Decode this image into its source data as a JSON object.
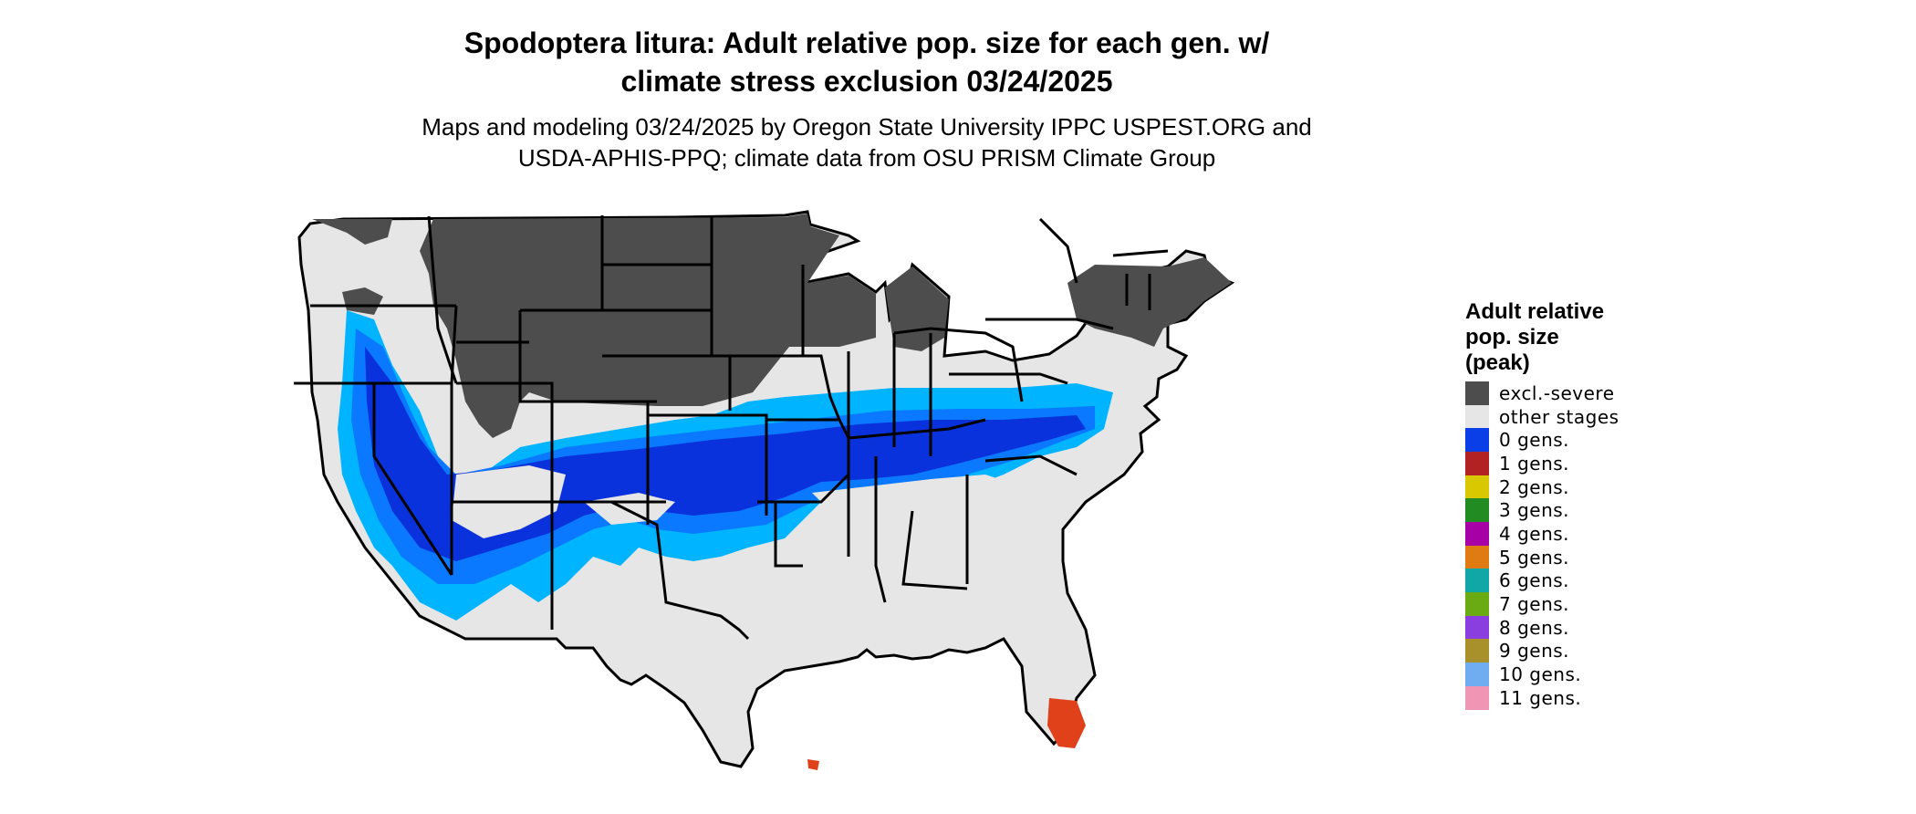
{
  "title_line1": "Spodoptera litura: Adult relative pop. size for each gen. w/",
  "title_line2": "climate stress exclusion 03/24/2025",
  "subtitle_line1": "Maps and modeling 03/24/2025 by Oregon State University IPPC USPEST.ORG and",
  "subtitle_line2": "USDA-APHIS-PPQ; climate data from OSU PRISM Climate Group",
  "legend": {
    "title_line1": "Adult relative",
    "title_line2": "pop. size",
    "title_line3": "(peak)",
    "items": [
      {
        "label": "excl.-severe",
        "color": "#4d4d4d"
      },
      {
        "label": "other stages",
        "color": "#e6e6e6"
      },
      {
        "label": "0 gens.",
        "color": "#0a3ee6"
      },
      {
        "label": "1 gens.",
        "color": "#b22222"
      },
      {
        "label": "2 gens.",
        "color": "#d9c800"
      },
      {
        "label": "3 gens.",
        "color": "#228b22"
      },
      {
        "label": "4 gens.",
        "color": "#a600a6"
      },
      {
        "label": "5 gens.",
        "color": "#e07b14"
      },
      {
        "label": "6 gens.",
        "color": "#12a7a7"
      },
      {
        "label": "7 gens.",
        "color": "#6aab14"
      },
      {
        "label": "8 gens.",
        "color": "#8b3ee0"
      },
      {
        "label": "9 gens.",
        "color": "#a8902a"
      },
      {
        "label": "10 gens.",
        "color": "#70acf0"
      },
      {
        "label": "11 gens.",
        "color": "#f096b4"
      }
    ]
  },
  "map_colors": {
    "land": "#e6e6e6",
    "excluded": "#4d4d4d",
    "light_blue": "#00b4ff",
    "mid_blue": "#0a78ff",
    "dark_blue": "#0a32dc",
    "south_florida": "#e0401a",
    "border": "#000000"
  }
}
